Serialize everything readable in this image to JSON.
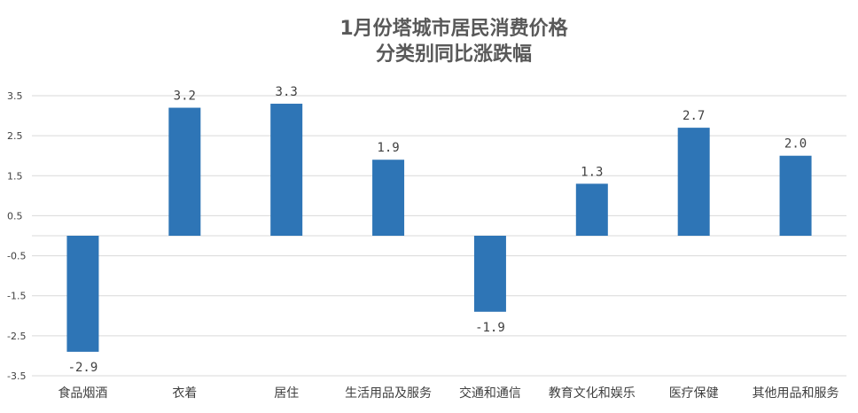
{
  "chart_data": {
    "type": "bar",
    "title_lines": [
      "1月份塔城市居民消费价格",
      "分类别同比涨跌幅"
    ],
    "categories": [
      "食品烟酒",
      "衣着",
      "居住",
      "生活用品及服务",
      "交通和通信",
      "教育文化和娱乐",
      "医疗保健",
      "其他用品和服务"
    ],
    "values": [
      -2.9,
      3.2,
      3.3,
      1.9,
      -1.9,
      1.3,
      2.7,
      2.0
    ],
    "data_labels": [
      "-2.9",
      "3.2",
      "3.3",
      "1.9",
      "-1.9",
      "1.3",
      "2.7",
      "2.0"
    ],
    "yticks": [
      "3.5",
      "2.5",
      "1.5",
      "0.5",
      "-0.5",
      "-1.5",
      "-2.5",
      "-3.5"
    ],
    "ylim": [
      -3.5,
      3.5
    ],
    "grid": true,
    "legend": "none",
    "bar_color": "#2e75b6"
  }
}
